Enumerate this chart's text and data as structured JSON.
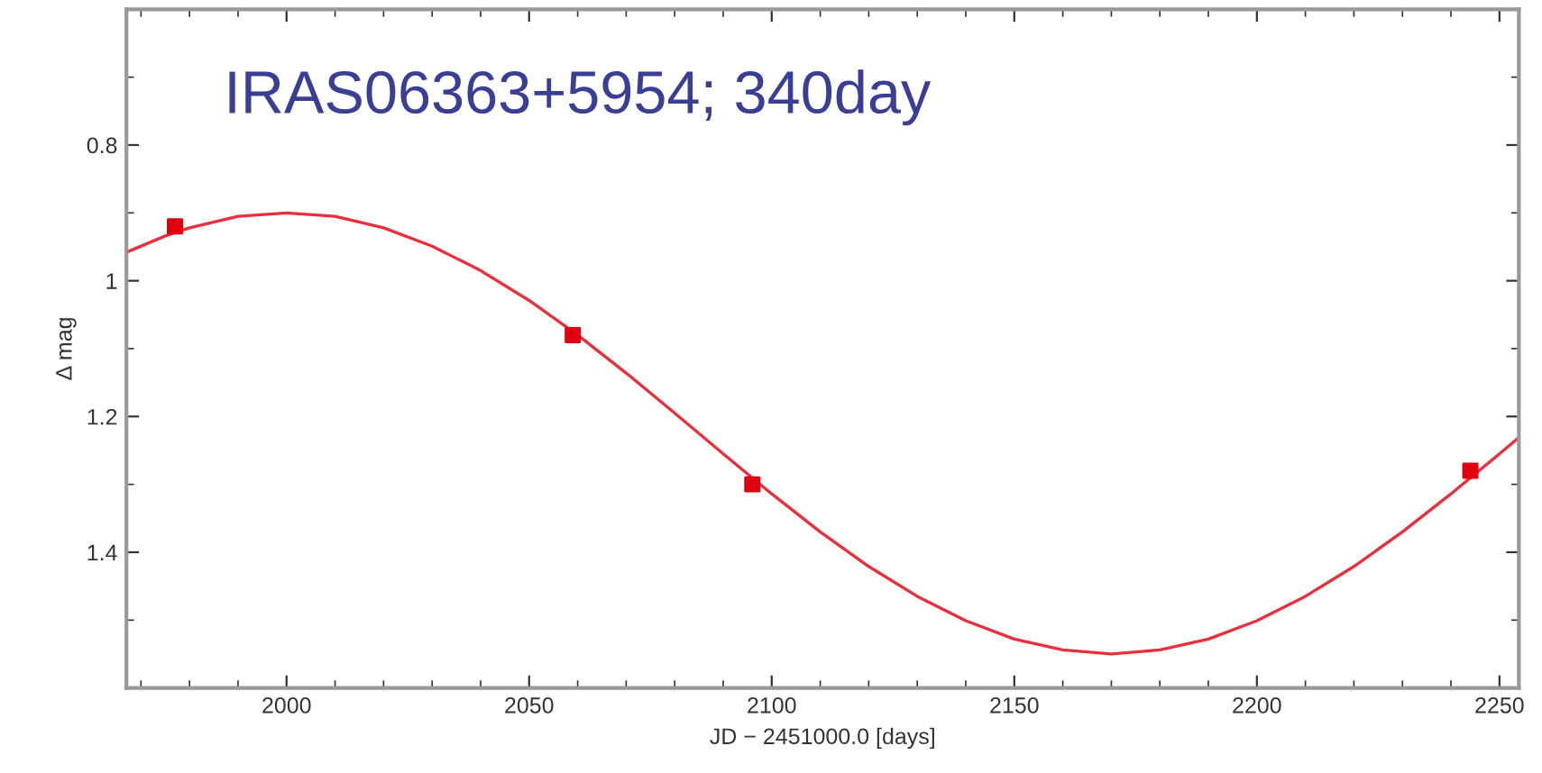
{
  "chart_data": {
    "type": "line",
    "title": "IRAS06363+5954; 340day",
    "xlabel": "JD − 2451000.0 [days]",
    "ylabel": "Δ mag",
    "xlim": [
      1967,
      2254
    ],
    "xticks": [
      2000,
      2050,
      2100,
      2150,
      2200,
      2250
    ],
    "ylim": [
      1.6,
      0.6
    ],
    "yticks": [
      0.8,
      1,
      1.2,
      1.4
    ],
    "grid": false,
    "legend": false,
    "series": [
      {
        "color": "#e8303a",
        "marker": "none",
        "line_style": "solid",
        "x": [
          1967,
          1975,
          1980,
          1990,
          2000,
          2010,
          2020,
          2030,
          2040,
          2050,
          2060,
          2070,
          2080,
          2090,
          2100,
          2110,
          2120,
          2130,
          2140,
          2150,
          2160,
          2170,
          2180,
          2190,
          2200,
          2210,
          2220,
          2230,
          2240,
          2250,
          2254
        ],
        "values": [
          0.958,
          0.934,
          0.922,
          0.905,
          0.9,
          0.905,
          0.922,
          0.949,
          0.985,
          1.029,
          1.08,
          1.136,
          1.195,
          1.255,
          1.314,
          1.37,
          1.421,
          1.465,
          1.501,
          1.528,
          1.544,
          1.55,
          1.544,
          1.528,
          1.501,
          1.465,
          1.421,
          1.37,
          1.314,
          1.255,
          1.231
        ]
      },
      {
        "type": "scatter",
        "color": "#e00010",
        "marker": "square",
        "x": [
          1977,
          2059,
          2096,
          2244
        ],
        "values": [
          0.92,
          1.08,
          1.3,
          1.28
        ]
      }
    ]
  }
}
